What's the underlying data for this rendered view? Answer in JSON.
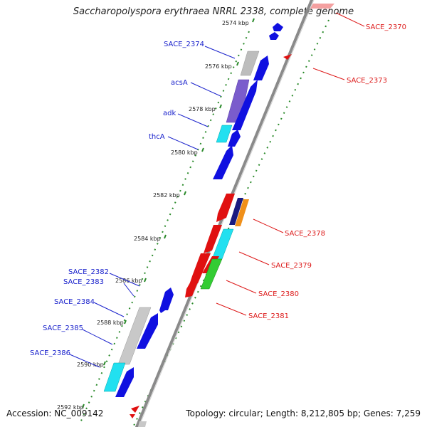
{
  "title": "Saccharopolyspora erythraea NRRL 2338, complete genome",
  "footer": {
    "accession": "Accession: NC_009142",
    "summary": "Topology: circular; Length: 8,212,805 bp; Genes: 7,259"
  },
  "colors": {
    "backbone": "#8a8a8a",
    "plus_strand": "#1010e0",
    "minus_strand": "#e01010",
    "gc_dots": "#2a8a2a",
    "gray_gene": "#bdbdbd",
    "purple_gene": "#7a5ccc",
    "cyan_gene": "#22e0f0",
    "green_gene": "#33cc33",
    "orange_gene": "#f0901a",
    "navy_gene": "#1a1a80",
    "blue_label": "#1a22cc",
    "red_label": "#dd1a1a"
  },
  "axis": {
    "tick_labels": [
      "2574 kbp",
      "2576 kbp",
      "2578 kbp",
      "2580 kbp",
      "2582 kbp",
      "2584 kbp",
      "2586 kbp",
      "2588 kbp",
      "2590 kbp",
      "2592 kbp"
    ]
  },
  "labels": {
    "plus": [
      "SACE_2374",
      "acsA",
      "adk",
      "thcA",
      "SACE_2382",
      "SACE_2383",
      "SACE_2384",
      "SACE_2385",
      "SACE_2386"
    ],
    "minus": [
      "SACE_2370",
      "SACE_2373",
      "SACE_2378",
      "SACE_2379",
      "SACE_2380",
      "SACE_2381"
    ]
  }
}
